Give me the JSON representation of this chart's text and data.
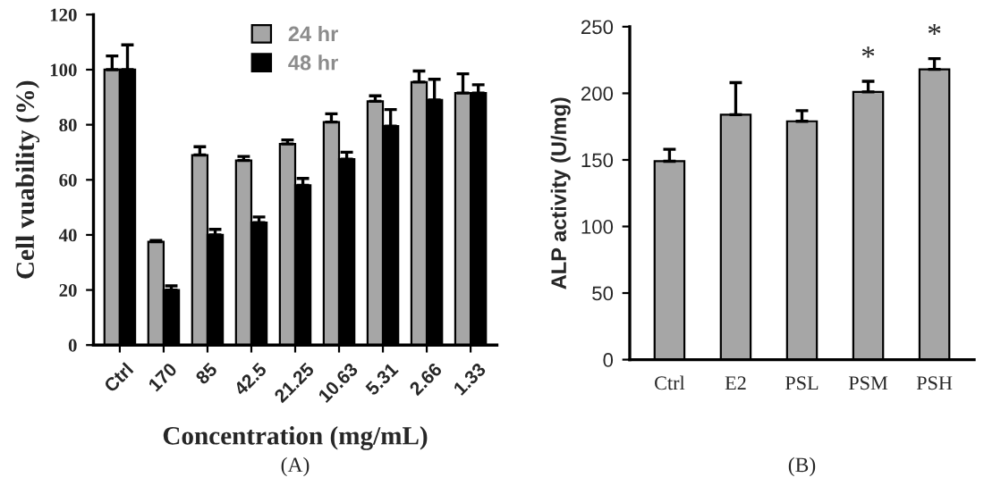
{
  "chart_data": [
    {
      "type": "bar",
      "xlabel": "Concentration (mg/mL)",
      "ylabel": "Cell vuability (%)",
      "categories": [
        "Ctrl",
        "170",
        "85",
        "42.5",
        "21.25",
        "10.63",
        "5.31",
        "2.66",
        "1.33"
      ],
      "series": [
        {
          "name": "24 hr",
          "color": "#a6a6a6",
          "values": [
            100,
            37.5,
            69,
            67,
            73,
            81,
            88.5,
            95.5,
            91.5
          ],
          "errors": [
            [
              100,
              105
            ],
            [
              37.5,
              38
            ],
            [
              69,
              72
            ],
            [
              67,
              68.5
            ],
            [
              73,
              74.5
            ],
            [
              81,
              84
            ],
            [
              88.5,
              90.5
            ],
            [
              95.5,
              99.5
            ],
            [
              91.5,
              98.5
            ]
          ]
        },
        {
          "name": "48 hr",
          "color": "#000000",
          "values": [
            100,
            20,
            40,
            44.5,
            58,
            67.5,
            79.5,
            89,
            91.5
          ],
          "errors": [
            [
              100,
              109
            ],
            [
              20,
              21.5
            ],
            [
              40,
              42
            ],
            [
              44.5,
              46.5
            ],
            [
              58,
              60.5
            ],
            [
              67.5,
              70
            ],
            [
              79.5,
              85.5
            ],
            [
              89,
              96.5
            ],
            [
              91.5,
              94.5
            ]
          ]
        }
      ],
      "ylim": [
        0,
        120
      ],
      "yticks": [
        0,
        20,
        40,
        60,
        80,
        100,
        120
      ],
      "grid": false,
      "legend": "top",
      "annotations": [
        "(A)"
      ]
    },
    {
      "type": "bar",
      "ylabel": "ALP activity (U/mg)",
      "categories": [
        "Ctrl",
        "E2",
        "PSL",
        "PSM",
        "PSH"
      ],
      "series": [
        {
          "color": "#a6a6a6",
          "values": [
            149,
            184,
            179,
            201,
            218
          ],
          "errors": [
            [
              149,
              158
            ],
            [
              184,
              208
            ],
            [
              179,
              187
            ],
            [
              201,
              209
            ],
            [
              218,
              226
            ]
          ]
        }
      ],
      "ylim": [
        0,
        250
      ],
      "yticks": [
        0,
        50,
        100,
        150,
        200,
        250
      ],
      "grid": false,
      "legend": false,
      "annotations": [
        {
          "text": "*",
          "x": "PSM",
          "y": 209
        },
        {
          "text": "*",
          "x": "PSH",
          "y": 226
        },
        "(B)"
      ]
    }
  ]
}
